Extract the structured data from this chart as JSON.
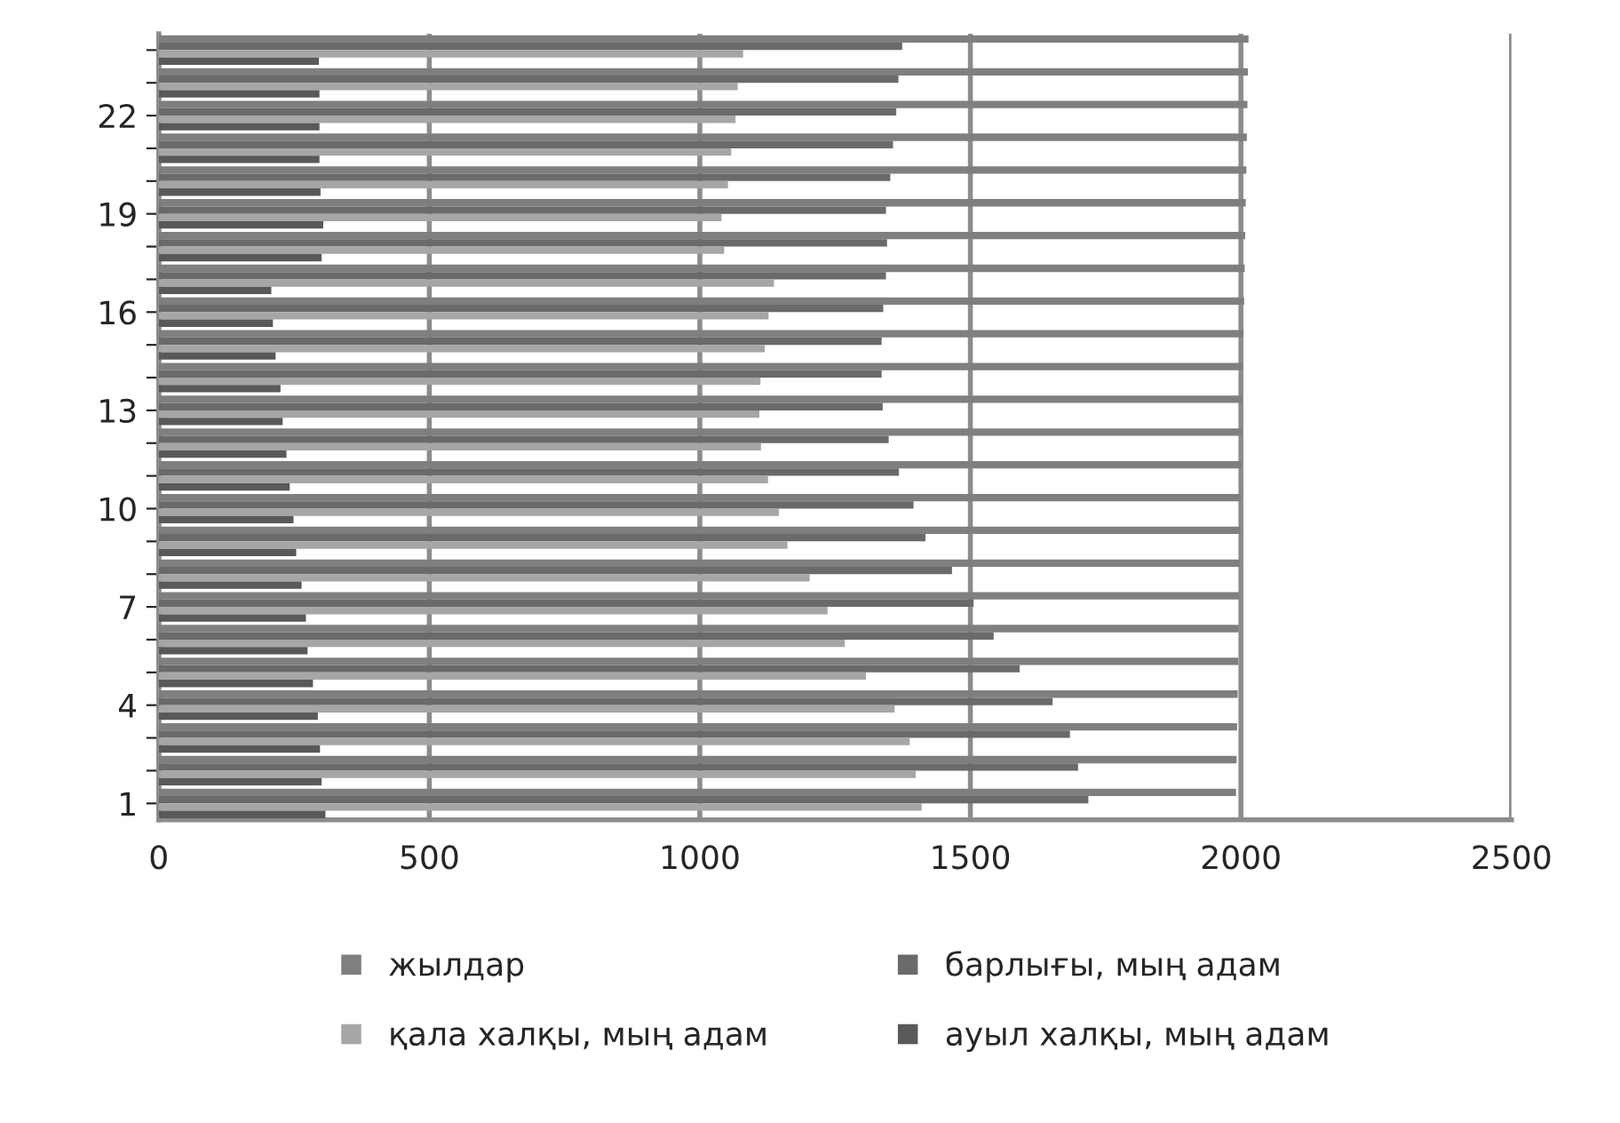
{
  "chart_data": {
    "type": "bar",
    "orientation": "horizontal",
    "categories": [
      null,
      null,
      "22",
      null,
      null,
      "19",
      null,
      null,
      "16",
      null,
      null,
      "13",
      null,
      null,
      "10",
      null,
      null,
      "7",
      null,
      null,
      "4",
      null,
      null,
      "1"
    ],
    "series": [
      {
        "name": "жылдар",
        "color": "#7f7f7f",
        "values": [
          2014,
          2013,
          2012,
          2011,
          2010,
          2009,
          2008,
          2007,
          2006,
          2005,
          2004,
          2003,
          2002,
          2001,
          2000,
          1999,
          1998,
          1997,
          1996,
          1995,
          1994,
          1993,
          1992,
          1991
        ]
      },
      {
        "name": "барлығы, мың адам",
        "color": "#6a6a6a",
        "values": [
          1374,
          1367,
          1363,
          1357,
          1352,
          1344,
          1346,
          1344,
          1339,
          1336,
          1336,
          1338,
          1349,
          1368,
          1395,
          1417,
          1466,
          1506,
          1543,
          1591,
          1652,
          1684,
          1699,
          1718
        ]
      },
      {
        "name": "қала халқы, мың адам",
        "color": "#a6a6a6",
        "values": [
          1080,
          1070,
          1066,
          1058,
          1052,
          1040,
          1045,
          1137,
          1127,
          1120,
          1112,
          1110,
          1113,
          1126,
          1146,
          1162,
          1203,
          1236,
          1268,
          1307,
          1360,
          1388,
          1399,
          1410
        ]
      },
      {
        "name": "ауыл халқы, мың адам",
        "color": "#595959",
        "values": [
          296,
          297,
          297,
          297,
          299,
          304,
          301,
          208,
          211,
          216,
          225,
          229,
          236,
          242,
          249,
          254,
          264,
          272,
          275,
          285,
          294,
          298,
          301,
          308
        ]
      }
    ],
    "xlim": [
      0,
      2500
    ],
    "xticks": [
      0,
      500,
      1000,
      1500,
      2000,
      2500
    ],
    "grid": "x",
    "legend": "bottom"
  }
}
